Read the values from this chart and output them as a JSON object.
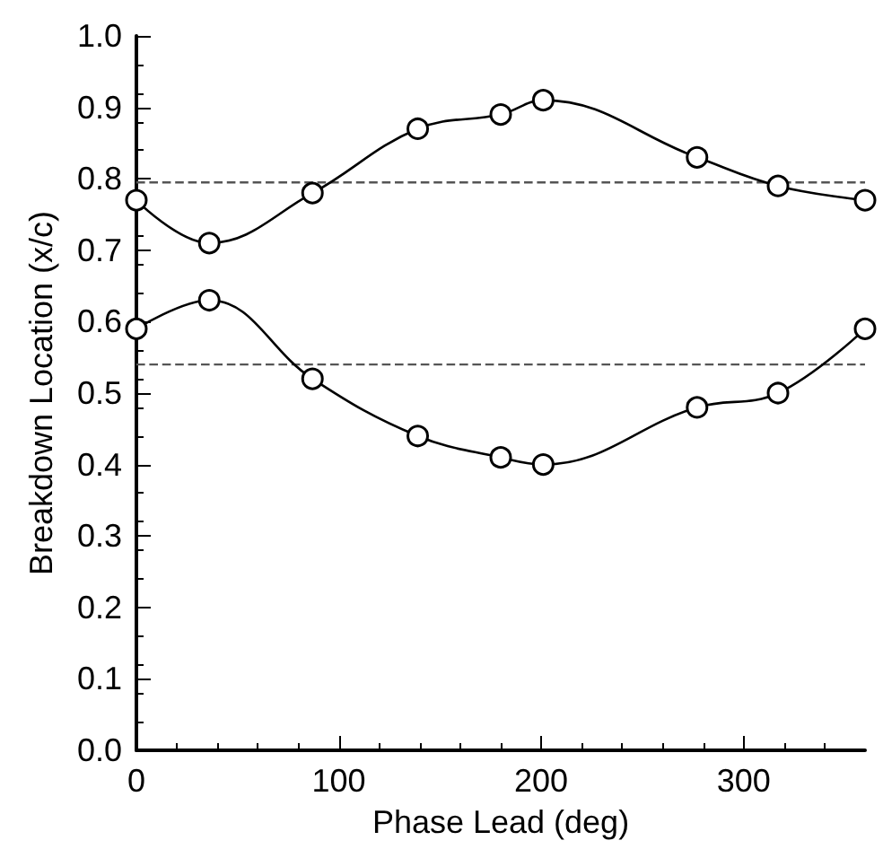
{
  "chart_data": {
    "type": "line",
    "xlabel": "Phase Lead (deg)",
    "ylabel": "Breakdown Location (x/c)",
    "xlim": [
      0,
      360
    ],
    "xticks": [
      0,
      100,
      200,
      300
    ],
    "ylim": [
      0,
      1
    ],
    "yticks": [
      {
        "value": 0,
        "label": "0.0"
      },
      0.1,
      0.2,
      0.3,
      0.4,
      0.5,
      0.6,
      0.7,
      0.8,
      0.9,
      {
        "value": 1,
        "label": "1.0"
      }
    ],
    "x": [
      0,
      36,
      87,
      139,
      180,
      201,
      277,
      317,
      360
    ],
    "series": [
      {
        "color": "#000000",
        "values": [
          0.77,
          0.71,
          0.78,
          0.87,
          0.89,
          0.91,
          0.83,
          0.79,
          0.77
        ]
      },
      {
        "color": "#000000",
        "values": [
          0.59,
          0.63,
          0.52,
          0.44,
          0.41,
          0.4,
          0.48,
          0.5,
          0.59
        ]
      }
    ],
    "ref_lines": [
      {
        "axis": "y",
        "value": 0.795,
        "color": "#555555",
        "line_style": "dashed"
      },
      {
        "axis": "y",
        "value": 0.54,
        "color": "#555555",
        "line_style": "dashed"
      }
    ],
    "marker": "circle",
    "line_style": "solid"
  }
}
